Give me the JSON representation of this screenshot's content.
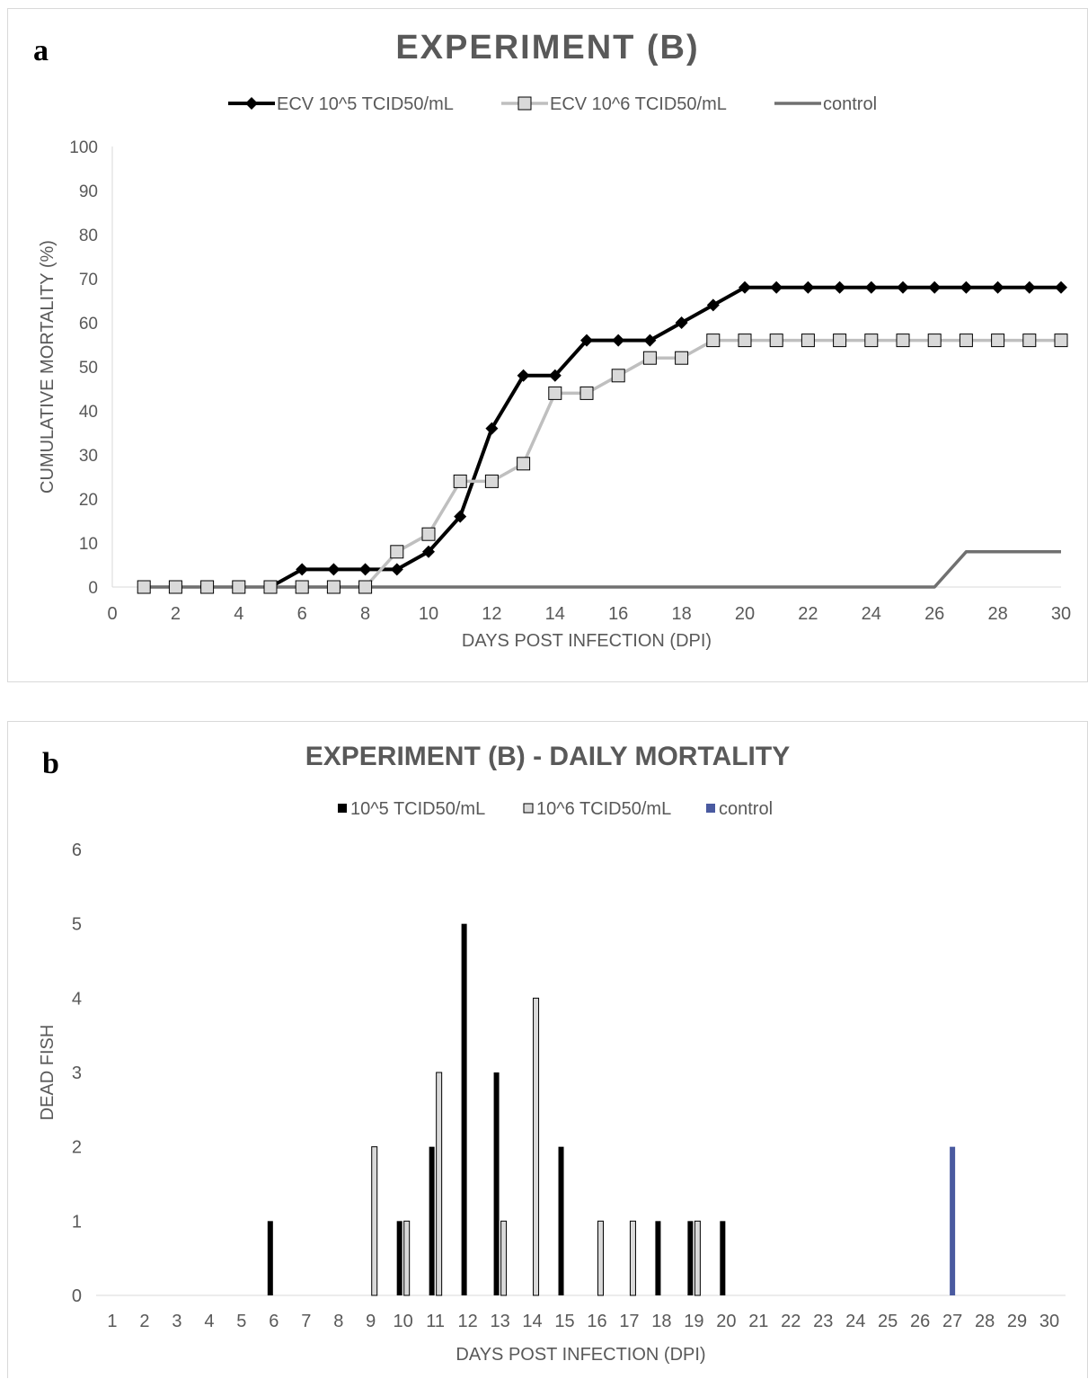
{
  "figure": {
    "panel_a_letter": "a",
    "panel_b_letter": "b"
  },
  "chart_data": [
    {
      "type": "line",
      "title": "EXPERIMENT (B)",
      "xlabel": "DAYS POST INFECTION (DPI)",
      "ylabel": "CUMULATIVE MORTALITY (%)",
      "xlim": [
        0,
        30
      ],
      "ylim": [
        0,
        100
      ],
      "x_ticks": [
        "0",
        "2",
        "4",
        "6",
        "8",
        "10",
        "12",
        "14",
        "16",
        "18",
        "20",
        "22",
        "24",
        "26",
        "28",
        "30"
      ],
      "y_ticks": [
        "0",
        "10",
        "20",
        "30",
        "40",
        "50",
        "60",
        "70",
        "80",
        "90",
        "100"
      ],
      "grid": false,
      "legend_position": "top",
      "series": [
        {
          "name": "ECV 10^5 TCID50/mL",
          "color": "#000000",
          "marker": "diamond",
          "x": [
            5,
            6,
            7,
            8,
            9,
            10,
            11,
            12,
            13,
            14,
            15,
            16,
            17,
            18,
            19,
            20,
            21,
            22,
            23,
            24,
            25,
            26,
            27,
            28,
            29,
            30
          ],
          "y": [
            0,
            4,
            4,
            4,
            4,
            8,
            16,
            36,
            48,
            48,
            56,
            56,
            56,
            60,
            64,
            68,
            68,
            68,
            68,
            68,
            68,
            68,
            68,
            68,
            68,
            68
          ]
        },
        {
          "name": "ECV 10^6 TCID50/mL",
          "color": "#bfbfbf",
          "marker": "square",
          "x": [
            1,
            2,
            3,
            4,
            5,
            6,
            7,
            8,
            9,
            10,
            11,
            12,
            13,
            14,
            15,
            16,
            17,
            18,
            19,
            20,
            21,
            22,
            23,
            24,
            25,
            26,
            27,
            28,
            29,
            30
          ],
          "y": [
            0,
            0,
            0,
            0,
            0,
            0,
            0,
            0,
            8,
            12,
            24,
            24,
            28,
            44,
            44,
            48,
            52,
            52,
            56,
            56,
            56,
            56,
            56,
            56,
            56,
            56,
            56,
            56,
            56,
            56
          ]
        },
        {
          "name": "control",
          "color": "#707070",
          "marker": "none",
          "x": [
            1,
            2,
            3,
            4,
            5,
            6,
            7,
            8,
            9,
            10,
            11,
            12,
            13,
            14,
            15,
            16,
            17,
            18,
            19,
            20,
            21,
            22,
            23,
            24,
            25,
            26,
            27,
            28,
            29,
            30
          ],
          "y": [
            0,
            0,
            0,
            0,
            0,
            0,
            0,
            0,
            0,
            0,
            0,
            0,
            0,
            0,
            0,
            0,
            0,
            0,
            0,
            0,
            0,
            0,
            0,
            0,
            0,
            0,
            8,
            8,
            8,
            8
          ]
        }
      ]
    },
    {
      "type": "bar",
      "title": "EXPERIMENT (B) - DAILY MORTALITY",
      "xlabel": "DAYS POST INFECTION (DPI)",
      "ylabel": "DEAD FISH",
      "ylim": [
        0,
        6
      ],
      "y_ticks": [
        "0",
        "1",
        "2",
        "3",
        "4",
        "5",
        "6"
      ],
      "grid": false,
      "legend_position": "top",
      "categories": [
        "1",
        "2",
        "3",
        "4",
        "5",
        "6",
        "7",
        "8",
        "9",
        "10",
        "11",
        "12",
        "13",
        "14",
        "15",
        "16",
        "17",
        "18",
        "19",
        "20",
        "21",
        "22",
        "23",
        "24",
        "25",
        "26",
        "27",
        "28",
        "29",
        "30"
      ],
      "series": [
        {
          "name": "10^5 TCID50/mL",
          "color": "#000000",
          "values": [
            0,
            0,
            0,
            0,
            0,
            1,
            0,
            0,
            0,
            1,
            2,
            5,
            3,
            0,
            2,
            0,
            0,
            1,
            1,
            1,
            0,
            0,
            0,
            0,
            0,
            0,
            0,
            0,
            0,
            0
          ]
        },
        {
          "name": "10^6 TCID50/mL",
          "color": "#d9d9d9",
          "values": [
            0,
            0,
            0,
            0,
            0,
            0,
            0,
            0,
            2,
            1,
            3,
            0,
            1,
            4,
            0,
            1,
            1,
            0,
            1,
            0,
            0,
            0,
            0,
            0,
            0,
            0,
            0,
            0,
            0,
            0
          ]
        },
        {
          "name": "control",
          "color": "#4a5aa0",
          "values": [
            0,
            0,
            0,
            0,
            0,
            0,
            0,
            0,
            0,
            0,
            0,
            0,
            0,
            0,
            0,
            0,
            0,
            0,
            0,
            0,
            0,
            0,
            0,
            0,
            0,
            0,
            2,
            0,
            0,
            0
          ]
        }
      ]
    }
  ]
}
